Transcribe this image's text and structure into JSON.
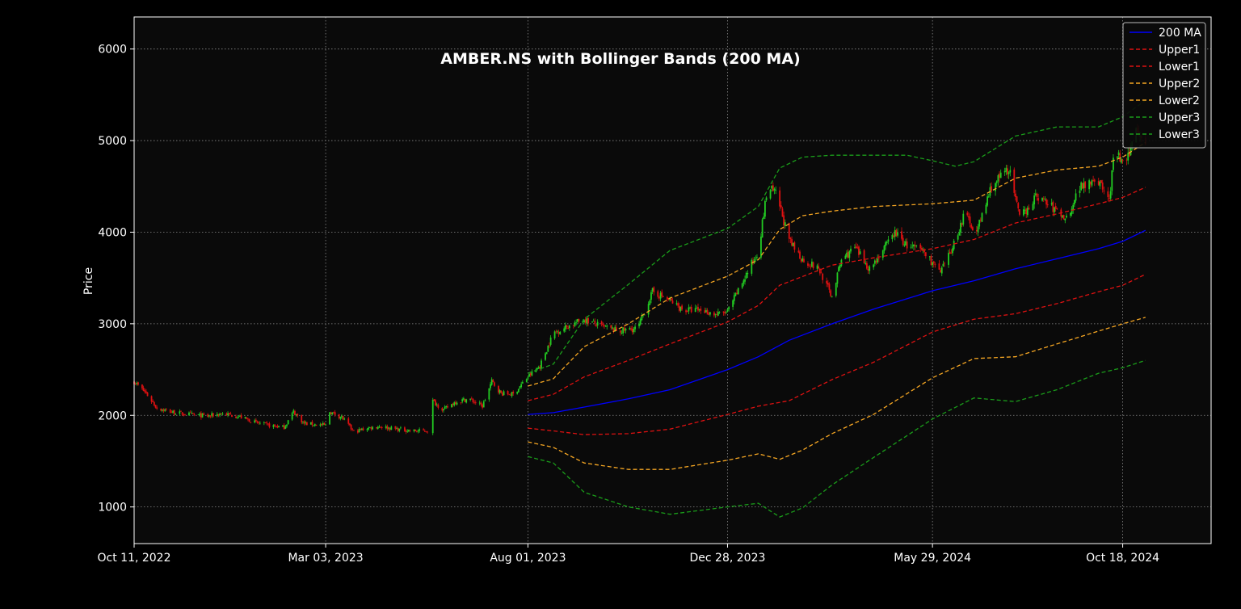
{
  "chart_data": {
    "type": "line",
    "title": "AMBER.NS with Bollinger Bands (200 MA)",
    "xlabel": "",
    "ylabel": "Price",
    "ylim": [
      600,
      6350
    ],
    "xlim": [
      "2022-10-11",
      "2024-12-23"
    ],
    "yticks": [
      1000,
      2000,
      3000,
      4000,
      5000,
      6000
    ],
    "xticks": [
      {
        "date": "2022-10-11",
        "label": "Oct 11, 2022"
      },
      {
        "date": "2023-03-03",
        "label": "Mar 03, 2023"
      },
      {
        "date": "2023-08-01",
        "label": "Aug 01, 2023"
      },
      {
        "date": "2023-12-28",
        "label": "Dec 28, 2023"
      },
      {
        "date": "2024-05-29",
        "label": "May 29, 2024"
      },
      {
        "date": "2024-10-18",
        "label": "Oct 18, 2024"
      }
    ],
    "grid": true,
    "legend_position": "top-right",
    "background": "#0a0a0a",
    "candle_colors": {
      "up": "#22cc22",
      "down": "#dd1111"
    },
    "price_path": [
      [
        "2022-10-11",
        2370
      ],
      [
        "2022-10-20",
        2240
      ],
      [
        "2022-10-28",
        2080
      ],
      [
        "2022-11-10",
        2030
      ],
      [
        "2022-11-22",
        2010
      ],
      [
        "2022-12-05",
        1990
      ],
      [
        "2022-12-15",
        2020
      ],
      [
        "2022-12-28",
        1990
      ],
      [
        "2023-01-10",
        1920
      ],
      [
        "2023-01-20",
        1890
      ],
      [
        "2023-01-31",
        1870
      ],
      [
        "2023-02-07",
        2040
      ],
      [
        "2023-02-15",
        1910
      ],
      [
        "2023-02-24",
        1900
      ],
      [
        "2023-03-03",
        1890
      ],
      [
        "2023-03-06",
        2040
      ],
      [
        "2023-03-15",
        1980
      ],
      [
        "2023-03-24",
        1820
      ],
      [
        "2023-04-03",
        1860
      ],
      [
        "2023-04-12",
        1880
      ],
      [
        "2023-04-25",
        1850
      ],
      [
        "2023-05-08",
        1830
      ],
      [
        "2023-05-18",
        1830
      ],
      [
        "2023-05-20",
        2180
      ],
      [
        "2023-05-30",
        2060
      ],
      [
        "2023-06-08",
        2150
      ],
      [
        "2023-06-18",
        2180
      ],
      [
        "2023-06-28",
        2100
      ],
      [
        "2023-07-05",
        2370
      ],
      [
        "2023-07-12",
        2240
      ],
      [
        "2023-07-21",
        2230
      ],
      [
        "2023-08-01",
        2420
      ],
      [
        "2023-08-10",
        2540
      ],
      [
        "2023-08-20",
        2900
      ],
      [
        "2023-09-01",
        2980
      ],
      [
        "2023-09-12",
        3050
      ],
      [
        "2023-09-25",
        2970
      ],
      [
        "2023-10-08",
        2920
      ],
      [
        "2023-10-22",
        2950
      ],
      [
        "2023-11-02",
        3350
      ],
      [
        "2023-11-12",
        3280
      ],
      [
        "2023-11-25",
        3150
      ],
      [
        "2023-12-08",
        3150
      ],
      [
        "2023-12-20",
        3100
      ],
      [
        "2023-12-28",
        3130
      ],
      [
        "2024-01-08",
        3450
      ],
      [
        "2024-01-20",
        3800
      ],
      [
        "2024-01-27",
        4500
      ],
      [
        "2024-02-03",
        4400
      ],
      [
        "2024-02-12",
        3900
      ],
      [
        "2024-02-22",
        3700
      ],
      [
        "2024-03-05",
        3600
      ],
      [
        "2024-03-15",
        3300
      ],
      [
        "2024-03-22",
        3700
      ],
      [
        "2024-04-01",
        3830
      ],
      [
        "2024-04-12",
        3600
      ],
      [
        "2024-04-22",
        3800
      ],
      [
        "2024-05-01",
        4000
      ],
      [
        "2024-05-10",
        3850
      ],
      [
        "2024-05-22",
        3800
      ],
      [
        "2024-06-04",
        3550
      ],
      [
        "2024-06-12",
        3800
      ],
      [
        "2024-06-22",
        4200
      ],
      [
        "2024-07-01",
        4000
      ],
      [
        "2024-07-12",
        4500
      ],
      [
        "2024-07-25",
        4700
      ],
      [
        "2024-08-02",
        4150
      ],
      [
        "2024-08-15",
        4400
      ],
      [
        "2024-08-28",
        4250
      ],
      [
        "2024-09-06",
        4150
      ],
      [
        "2024-09-16",
        4500
      ],
      [
        "2024-09-28",
        4600
      ],
      [
        "2024-10-08",
        4350
      ],
      [
        "2024-10-12",
        4900
      ],
      [
        "2024-10-20",
        4700
      ],
      [
        "2024-10-28",
        5150
      ],
      [
        "2024-11-04",
        5000
      ]
    ],
    "series": [
      {
        "name": "200 MA",
        "color": "#0000ff",
        "dash": "solid",
        "x": [
          "2023-08-01",
          "2023-08-20",
          "2023-09-12",
          "2023-10-15",
          "2023-11-15",
          "2023-12-28",
          "2024-01-20",
          "2024-02-12",
          "2024-03-15",
          "2024-04-15",
          "2024-05-29",
          "2024-06-29",
          "2024-07-30",
          "2024-08-30",
          "2024-09-30",
          "2024-10-18",
          "2024-11-04"
        ],
        "values": [
          2010,
          2030,
          2090,
          2180,
          2280,
          2500,
          2640,
          2820,
          3000,
          3160,
          3360,
          3470,
          3600,
          3710,
          3820,
          3900,
          4020
        ]
      },
      {
        "name": "Upper1",
        "color": "#dd1111",
        "dash": "dashed",
        "x": [
          "2023-08-01",
          "2023-08-20",
          "2023-09-12",
          "2023-10-15",
          "2023-11-15",
          "2023-12-28",
          "2024-01-20",
          "2024-02-05",
          "2024-03-15",
          "2024-04-15",
          "2024-05-29",
          "2024-06-29",
          "2024-07-30",
          "2024-08-30",
          "2024-09-30",
          "2024-10-18",
          "2024-11-04"
        ],
        "values": [
          2160,
          2230,
          2420,
          2600,
          2780,
          3020,
          3200,
          3420,
          3640,
          3720,
          3820,
          3920,
          4100,
          4200,
          4310,
          4380,
          4490
        ]
      },
      {
        "name": "Lower1",
        "color": "#dd1111",
        "dash": "dashed",
        "x": [
          "2023-08-01",
          "2023-08-20",
          "2023-09-12",
          "2023-10-15",
          "2023-11-15",
          "2023-12-28",
          "2024-01-20",
          "2024-02-12",
          "2024-03-15",
          "2024-04-15",
          "2024-05-29",
          "2024-06-29",
          "2024-07-30",
          "2024-08-30",
          "2024-09-30",
          "2024-10-18",
          "2024-11-04"
        ],
        "values": [
          1860,
          1830,
          1790,
          1800,
          1850,
          2010,
          2100,
          2160,
          2390,
          2580,
          2910,
          3050,
          3110,
          3220,
          3350,
          3420,
          3540
        ]
      },
      {
        "name": "Upper2",
        "color": "#f5a623",
        "dash": "dashed",
        "x": [
          "2023-08-01",
          "2023-08-20",
          "2023-09-12",
          "2023-10-15",
          "2023-11-15",
          "2023-12-28",
          "2024-01-20",
          "2024-02-05",
          "2024-02-22",
          "2024-03-15",
          "2024-04-15",
          "2024-05-29",
          "2024-06-29",
          "2024-07-30",
          "2024-08-30",
          "2024-09-30",
          "2024-10-18",
          "2024-11-04"
        ],
        "values": [
          2320,
          2400,
          2750,
          3000,
          3280,
          3520,
          3700,
          4030,
          4180,
          4230,
          4280,
          4310,
          4350,
          4590,
          4680,
          4720,
          4820,
          4980
        ]
      },
      {
        "name": "Lower2",
        "color": "#f5a623",
        "dash": "dashed",
        "x": [
          "2023-08-01",
          "2023-08-20",
          "2023-09-12",
          "2023-10-15",
          "2023-11-15",
          "2023-12-28",
          "2024-01-20",
          "2024-02-05",
          "2024-02-22",
          "2024-03-15",
          "2024-04-15",
          "2024-05-29",
          "2024-06-29",
          "2024-07-30",
          "2024-08-30",
          "2024-09-30",
          "2024-10-18",
          "2024-11-04"
        ],
        "values": [
          1710,
          1650,
          1480,
          1410,
          1410,
          1510,
          1580,
          1520,
          1620,
          1800,
          2010,
          2410,
          2620,
          2640,
          2780,
          2920,
          3000,
          3070
        ]
      },
      {
        "name": "Upper3",
        "color": "#1a9c1a",
        "dash": "dashed",
        "x": [
          "2023-08-01",
          "2023-08-20",
          "2023-09-12",
          "2023-10-15",
          "2023-11-15",
          "2023-12-28",
          "2024-01-20",
          "2024-02-05",
          "2024-02-22",
          "2024-03-15",
          "2024-04-15",
          "2024-05-10",
          "2024-05-29",
          "2024-06-15",
          "2024-06-29",
          "2024-07-30",
          "2024-08-30",
          "2024-09-30",
          "2024-10-18",
          "2024-11-04"
        ],
        "values": [
          2460,
          2560,
          3050,
          3430,
          3800,
          4040,
          4280,
          4700,
          4820,
          4840,
          4840,
          4840,
          4780,
          4720,
          4770,
          5050,
          5150,
          5150,
          5260,
          5440
        ]
      },
      {
        "name": "Lower3",
        "color": "#1a9c1a",
        "dash": "dashed",
        "x": [
          "2023-08-01",
          "2023-08-20",
          "2023-09-12",
          "2023-10-15",
          "2023-11-15",
          "2023-12-28",
          "2024-01-20",
          "2024-02-05",
          "2024-02-22",
          "2024-03-15",
          "2024-04-15",
          "2024-05-29",
          "2024-06-29",
          "2024-07-30",
          "2024-08-30",
          "2024-09-30",
          "2024-10-18",
          "2024-11-04"
        ],
        "values": [
          1550,
          1480,
          1160,
          1000,
          920,
          1000,
          1040,
          890,
          990,
          1240,
          1540,
          1960,
          2190,
          2150,
          2280,
          2460,
          2520,
          2600
        ]
      }
    ]
  }
}
